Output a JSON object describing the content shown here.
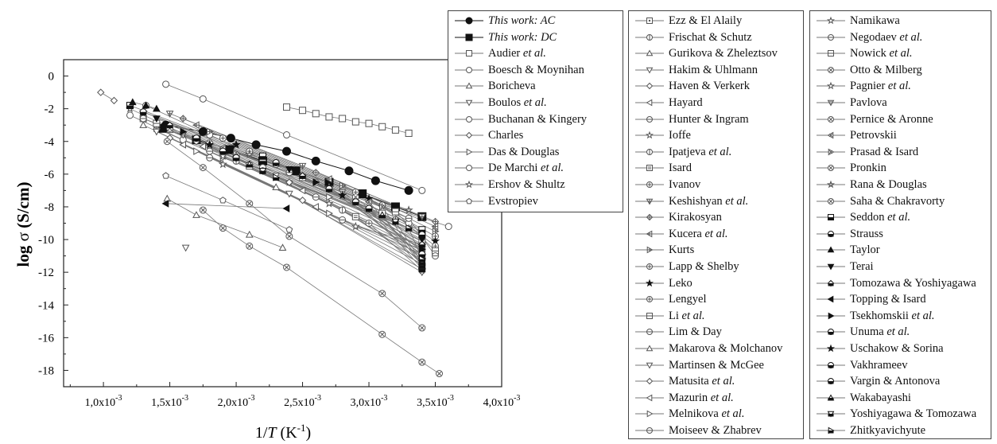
{
  "chart_data": {
    "type": "line",
    "xlabel": "1/T (K-1)",
    "ylabel": "log σ (S/cm)",
    "xlim": [
      0.0007,
      0.004
    ],
    "ylim": [
      -19,
      1
    ],
    "x_ticks": [
      0.001,
      0.0015,
      0.002,
      0.0025,
      0.003,
      0.0035,
      0.004
    ],
    "x_tick_labels": [
      "1,0x10",
      "1,5x10",
      "2,0x10",
      "2,5x10",
      "3,0x10",
      "3,5x10",
      "4,0x10"
    ],
    "x_tick_exponent": "-3",
    "y_ticks": [
      0,
      -2,
      -4,
      -6,
      -8,
      -10,
      -12,
      -14,
      -16,
      -18
    ],
    "y_tick_labels": [
      "0",
      "-2",
      "-4",
      "-6",
      "-8",
      "-10",
      "-12",
      "-14",
      "-16",
      "-18"
    ],
    "legend_position": "right",
    "series": [
      {
        "name": "This work: AC",
        "marker": "circle-filled",
        "x": [
          0.00147,
          0.00175,
          0.00196,
          0.00215,
          0.00238,
          0.0026,
          0.00285,
          0.00305,
          0.0033
        ],
        "y": [
          -3.0,
          -3.4,
          -3.8,
          -4.2,
          -4.6,
          -5.2,
          -5.8,
          -6.4,
          -7.0
        ]
      },
      {
        "name": "This work: DC",
        "marker": "square-filled",
        "x": [
          0.00145,
          0.0017,
          0.00195,
          0.0022,
          0.00245,
          0.0027,
          0.00295,
          0.0032,
          0.0034
        ],
        "y": [
          -3.2,
          -3.9,
          -4.5,
          -5.2,
          -5.8,
          -6.5,
          -7.2,
          -8.0,
          -8.6
        ]
      },
      {
        "name": "Audier et al.",
        "marker": "square-open",
        "x": [
          0.00238,
          0.0025,
          0.0026,
          0.0027,
          0.0028,
          0.0029,
          0.003,
          0.0031,
          0.0032,
          0.0033
        ],
        "y": [
          -1.9,
          -2.1,
          -2.3,
          -2.5,
          -2.6,
          -2.8,
          -2.9,
          -3.1,
          -3.3,
          -3.5
        ]
      },
      {
        "name": "Boesch & Moynihan",
        "marker": "circle-open",
        "x": [
          0.00147,
          0.00175,
          0.00238,
          0.0034
        ],
        "y": [
          -0.5,
          -1.4,
          -3.6,
          -7.0
        ]
      },
      {
        "name": "Boricheva",
        "marker": "triangle-open",
        "x": [
          0.00148,
          0.0017,
          0.0021,
          0.00235
        ],
        "y": [
          -7.5,
          -8.5,
          -9.7,
          -10.5
        ]
      },
      {
        "name": "Boulos et al.",
        "marker": "triangle-down-open",
        "x": [
          0.00162
        ],
        "y": [
          -10.5
        ]
      },
      {
        "name": "Buchanan & Kingery",
        "marker": "circle-open",
        "x": [
          0.00132,
          0.0018,
          0.0025,
          0.0033
        ],
        "y": [
          -1.8,
          -3.6,
          -6.2,
          -9.0
        ]
      },
      {
        "name": "Charles",
        "marker": "diamond-open",
        "x": [
          0.00098,
          0.00108
        ],
        "y": [
          -1.0,
          -1.5
        ]
      },
      {
        "name": "Das & Douglas",
        "marker": "triangle-right-open",
        "x": [
          0.0014,
          0.0019,
          0.0027
        ],
        "y": [
          -3.2,
          -5.0,
          -7.4
        ]
      },
      {
        "name": "De Marchi et al.",
        "marker": "circle-open",
        "x": [
          0.0012,
          0.0016,
          0.0022,
          0.003,
          0.0036
        ],
        "y": [
          -2.4,
          -3.9,
          -5.6,
          -7.6,
          -9.2
        ]
      },
      {
        "name": "Ershov & Shultz",
        "marker": "star-open",
        "x": [
          0.0012,
          0.0017,
          0.0024,
          0.0034
        ],
        "y": [
          -2.0,
          -3.9,
          -6.5,
          -10.5
        ]
      },
      {
        "name": "Evstropiev",
        "marker": "pentagon-open",
        "x": [
          0.00147,
          0.0019,
          0.0024
        ],
        "y": [
          -6.1,
          -7.6,
          -9.4
        ]
      },
      {
        "name": "Ezz & El Alaily",
        "marker": "square-dot",
        "x": [
          0.0013,
          0.002,
          0.0031
        ],
        "y": [
          -2.6,
          -4.9,
          -8.4
        ]
      },
      {
        "name": "Frischat & Schutz",
        "marker": "circle-vline",
        "x": [
          0.0014,
          0.0021,
          0.0032
        ],
        "y": [
          -3.0,
          -5.4,
          -8.8
        ]
      },
      {
        "name": "Gurikova & Zheleztsov",
        "marker": "triangle-open",
        "x": [
          0.0015,
          0.0022,
          0.0033
        ],
        "y": [
          -3.3,
          -5.8,
          -9.3
        ]
      },
      {
        "name": "Hakim & Uhlmann",
        "marker": "triangle-down-open",
        "x": [
          0.0016,
          0.0023,
          0.0034
        ],
        "y": [
          -3.6,
          -6.1,
          -9.8
        ]
      },
      {
        "name": "Haven & Verkerk",
        "marker": "diamond-open",
        "x": [
          0.0017,
          0.0024,
          0.0034
        ],
        "y": [
          -4.0,
          -6.5,
          -10.1
        ]
      },
      {
        "name": "Hayard",
        "marker": "triangle-left-open",
        "x": [
          0.00175,
          0.0025,
          0.0034
        ],
        "y": [
          -4.3,
          -7.0,
          -10.4
        ]
      },
      {
        "name": "Hunter & Ingram",
        "marker": "circle-hline",
        "x": [
          0.0018,
          0.0026,
          0.0034
        ],
        "y": [
          -4.6,
          -7.4,
          -10.7
        ]
      },
      {
        "name": "Ioffe",
        "marker": "star-open",
        "x": [
          0.0019,
          0.0027,
          0.0034
        ],
        "y": [
          -4.9,
          -7.8,
          -11.0
        ]
      },
      {
        "name": "Ipatjeva et al.",
        "marker": "circle-vline",
        "x": [
          0.002,
          0.0028,
          0.0034
        ],
        "y": [
          -5.2,
          -8.2,
          -11.3
        ]
      },
      {
        "name": "Isard",
        "marker": "square-hatch",
        "x": [
          0.0021,
          0.0029,
          0.0034
        ],
        "y": [
          -5.5,
          -8.6,
          -11.6
        ]
      },
      {
        "name": "Ivanov",
        "marker": "circle-cross",
        "x": [
          0.0022,
          0.003,
          0.0034
        ],
        "y": [
          -5.8,
          -9.0,
          -11.9
        ]
      },
      {
        "name": "Keshishyan et al.",
        "marker": "triangle-down-cross",
        "x": [
          0.0015,
          0.0025,
          0.0034
        ],
        "y": [
          -2.3,
          -5.5,
          -8.6
        ]
      },
      {
        "name": "Kirakosyan",
        "marker": "diamond-cross",
        "x": [
          0.0016,
          0.0026,
          0.0035
        ],
        "y": [
          -2.6,
          -5.9,
          -8.9
        ]
      },
      {
        "name": "Kucera et al.",
        "marker": "triangle-left-cross",
        "x": [
          0.0017,
          0.0027,
          0.0035
        ],
        "y": [
          -3.0,
          -6.3,
          -9.2
        ]
      },
      {
        "name": "Kurts",
        "marker": "triangle-right-cross",
        "x": [
          0.0018,
          0.0028,
          0.0035
        ],
        "y": [
          -3.4,
          -6.7,
          -9.5
        ]
      },
      {
        "name": "Lapp & Shelby",
        "marker": "circle-cross",
        "x": [
          0.0019,
          0.0029,
          0.0035
        ],
        "y": [
          -3.8,
          -7.1,
          -9.8
        ]
      },
      {
        "name": "Leko",
        "marker": "star-filled",
        "x": [
          0.002,
          0.003,
          0.0035
        ],
        "y": [
          -4.2,
          -7.5,
          -10.1
        ]
      },
      {
        "name": "Lengyel",
        "marker": "circle-cross",
        "x": [
          0.0021,
          0.0031,
          0.0035
        ],
        "y": [
          -4.6,
          -7.9,
          -10.4
        ]
      },
      {
        "name": "Li et al.",
        "marker": "square-hline",
        "x": [
          0.0022,
          0.0032,
          0.0035
        ],
        "y": [
          -5.0,
          -8.3,
          -10.7
        ]
      },
      {
        "name": "Lim & Day",
        "marker": "circle-hline",
        "x": [
          0.0023,
          0.0033,
          0.0035
        ],
        "y": [
          -5.4,
          -8.7,
          -11.0
        ]
      },
      {
        "name": "Makarova & Molchanov",
        "marker": "triangle-open",
        "x": [
          0.0013,
          0.0023,
          0.0034
        ],
        "y": [
          -3.0,
          -6.8,
          -11.8
        ]
      },
      {
        "name": "Martinsen & McGee",
        "marker": "triangle-down-open",
        "x": [
          0.0014,
          0.0024,
          0.0034
        ],
        "y": [
          -3.4,
          -7.2,
          -12.0
        ]
      },
      {
        "name": "Matusita et al.",
        "marker": "diamond-open",
        "x": [
          0.0015,
          0.0025,
          0.0034
        ],
        "y": [
          -3.8,
          -7.6,
          -11.5
        ]
      },
      {
        "name": "Mazurin et al.",
        "marker": "triangle-left-open",
        "x": [
          0.0016,
          0.0026,
          0.0034
        ],
        "y": [
          -4.2,
          -8.0,
          -11.2
        ]
      },
      {
        "name": "Melnikova et al.",
        "marker": "triangle-right-open",
        "x": [
          0.0017,
          0.0027,
          0.0034
        ],
        "y": [
          -4.6,
          -8.4,
          -10.9
        ]
      },
      {
        "name": "Moiseev & Zhabrev",
        "marker": "circle-hline",
        "x": [
          0.0018,
          0.0028,
          0.0034
        ],
        "y": [
          -5.0,
          -8.8,
          -10.6
        ]
      },
      {
        "name": "Namikawa",
        "marker": "star-open",
        "x": [
          0.0019,
          0.0029,
          0.0034
        ],
        "y": [
          -5.4,
          -9.2,
          -10.3
        ]
      },
      {
        "name": "Negodaev et al.",
        "marker": "circle-hline",
        "x": [
          0.0013,
          0.0024,
          0.0034
        ],
        "y": [
          -2.6,
          -5.9,
          -9.5
        ]
      },
      {
        "name": "Nowick et al.",
        "marker": "square-hline",
        "x": [
          0.0014,
          0.0025,
          0.0034
        ],
        "y": [
          -2.9,
          -6.2,
          -9.8
        ]
      },
      {
        "name": "Otto & Milberg",
        "marker": "circle-x",
        "x": [
          0.0015,
          0.0026,
          0.0034
        ],
        "y": [
          -3.2,
          -6.5,
          -10.1
        ]
      },
      {
        "name": "Pagnier et al.",
        "marker": "star-open",
        "x": [
          0.0016,
          0.0027,
          0.0034
        ],
        "y": [
          -3.5,
          -6.8,
          -10.4
        ]
      },
      {
        "name": "Pavlova",
        "marker": "triangle-down-hatch",
        "x": [
          0.0017,
          0.0028,
          0.0034
        ],
        "y": [
          -3.8,
          -7.1,
          -10.7
        ]
      },
      {
        "name": "Pernice & Aronne",
        "marker": "circle-x",
        "x": [
          0.0018,
          0.0029,
          0.0034
        ],
        "y": [
          -4.1,
          -7.4,
          -11.0
        ]
      },
      {
        "name": "Petrovskii",
        "marker": "triangle-left-x",
        "x": [
          0.0019,
          0.003,
          0.0034
        ],
        "y": [
          -4.4,
          -7.7,
          -11.3
        ]
      },
      {
        "name": "Prasad & Isard",
        "marker": "triangle-right-x",
        "x": [
          0.002,
          0.0031,
          0.0034
        ],
        "y": [
          -4.7,
          -8.0,
          -11.6
        ]
      },
      {
        "name": "Pronkin",
        "marker": "circle-x",
        "x": [
          0.00148,
          0.00175,
          0.0021,
          0.0024,
          0.0031,
          0.0034
        ],
        "y": [
          -4.0,
          -5.6,
          -7.8,
          -9.8,
          -13.3,
          -15.4
        ]
      },
      {
        "name": "Rana & Douglas",
        "marker": "star-hatch",
        "x": [
          0.0013,
          0.0021,
          0.0033
        ],
        "y": [
          -2.2,
          -4.8,
          -8.2
        ]
      },
      {
        "name": "Saha & Chakravorty",
        "marker": "circle-x",
        "x": [
          0.00175,
          0.0019,
          0.0021,
          0.00238,
          0.0031,
          0.0034,
          0.00353
        ],
        "y": [
          -8.2,
          -9.3,
          -10.4,
          -11.7,
          -15.8,
          -17.5,
          -18.2
        ]
      },
      {
        "name": "Seddon et al.",
        "marker": "square-half",
        "x": [
          0.0012,
          0.0022,
          0.0034
        ],
        "y": [
          -1.8,
          -4.9,
          -9.4
        ]
      },
      {
        "name": "Strauss",
        "marker": "circle-half",
        "x": [
          0.0013,
          0.0023,
          0.0034
        ],
        "y": [
          -2.2,
          -5.3,
          -9.7
        ]
      },
      {
        "name": "Taylor",
        "marker": "triangle-filled",
        "x": [
          0.00122,
          0.00132,
          0.0014
        ],
        "y": [
          -1.6,
          -1.8,
          -2.0
        ]
      },
      {
        "name": "Terai",
        "marker": "triangle-down-filled",
        "x": [
          0.0014,
          0.0024,
          0.0034
        ],
        "y": [
          -2.6,
          -5.7,
          -10.0
        ]
      },
      {
        "name": "Tomozawa & Yoshiyagawa",
        "marker": "diamond-half",
        "x": [
          0.0015,
          0.0025,
          0.0034
        ],
        "y": [
          -3.0,
          -6.1,
          -10.3
        ]
      },
      {
        "name": "Topping & Isard",
        "marker": "triangle-left-filled",
        "x": [
          0.00147,
          0.00238
        ],
        "y": [
          -7.8,
          -8.1
        ]
      },
      {
        "name": "Tsekhomskii et al.",
        "marker": "triangle-right-filled",
        "x": [
          0.0016,
          0.0026,
          0.0034
        ],
        "y": [
          -3.4,
          -6.5,
          -10.6
        ]
      },
      {
        "name": "Unuma et al.",
        "marker": "circle-half",
        "x": [
          0.0017,
          0.0027,
          0.0034
        ],
        "y": [
          -3.8,
          -6.9,
          -10.9
        ]
      },
      {
        "name": "Uschakow & Sorina",
        "marker": "star-filled",
        "x": [
          0.0018,
          0.0028,
          0.0034
        ],
        "y": [
          -4.2,
          -7.3,
          -11.2
        ]
      },
      {
        "name": "Vakhrameev",
        "marker": "circle-half",
        "x": [
          0.0019,
          0.0029,
          0.0034
        ],
        "y": [
          -4.6,
          -7.7,
          -11.5
        ]
      },
      {
        "name": "Vargin & Antonova",
        "marker": "circle-half",
        "x": [
          0.002,
          0.003,
          0.0034
        ],
        "y": [
          -5.0,
          -8.1,
          -11.8
        ]
      },
      {
        "name": "Wakabayashi",
        "marker": "triangle-half",
        "x": [
          0.0021,
          0.0031,
          0.0034
        ],
        "y": [
          -5.4,
          -8.5,
          -11.6
        ]
      },
      {
        "name": "Yoshiyagawa & Tomozawa",
        "marker": "triangle-down-half",
        "x": [
          0.0022,
          0.0032,
          0.0034
        ],
        "y": [
          -5.8,
          -8.9,
          -11.4
        ]
      },
      {
        "name": "Zhitkyavichyute",
        "marker": "triangle-right-half",
        "x": [
          0.0023,
          0.0033,
          0.0034
        ],
        "y": [
          -6.2,
          -9.3,
          -11.2
        ]
      }
    ]
  }
}
